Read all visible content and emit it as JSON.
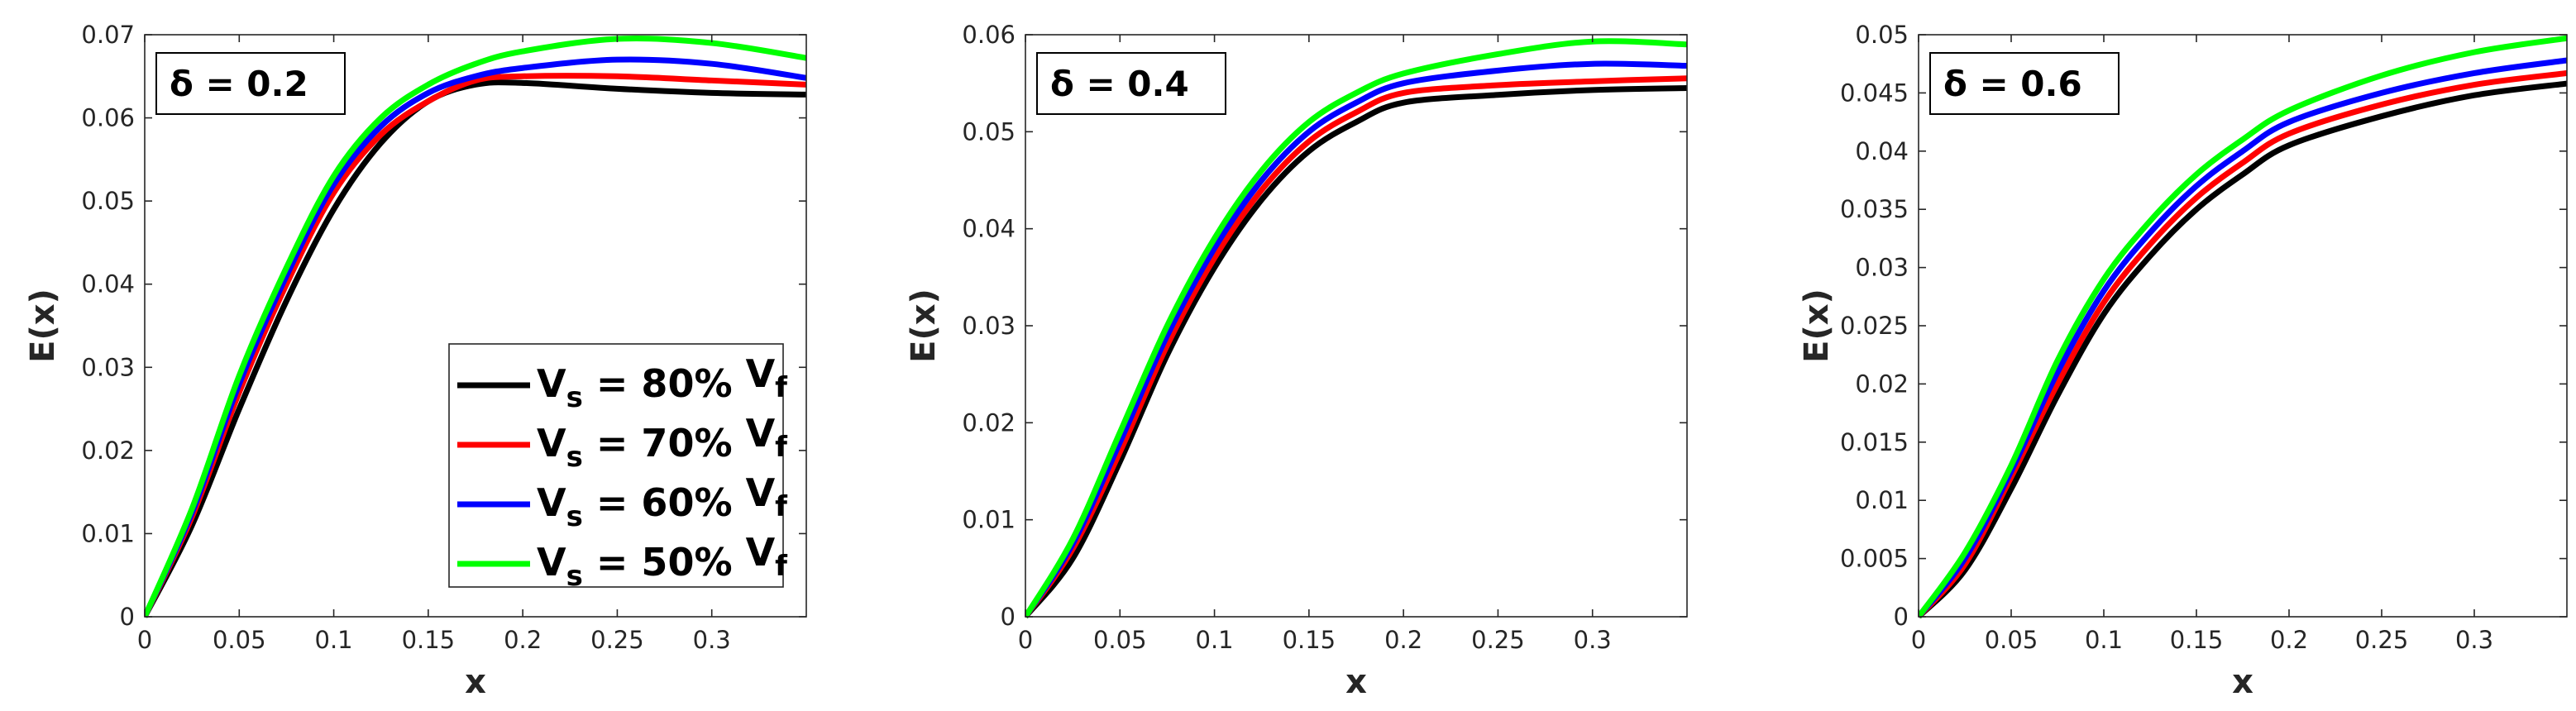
{
  "chart_data": [
    {
      "type": "line",
      "annotation": "δ = 0.2",
      "xlabel": "x",
      "ylabel": "E(x)",
      "xlim": [
        0,
        0.35
      ],
      "ylim": [
        0,
        0.07
      ],
      "xticks": [
        "0",
        "0.05",
        "0.1",
        "0.15",
        "0.2",
        "0.25",
        "0.3"
      ],
      "yticks": [
        "0",
        "0.01",
        "0.02",
        "0.03",
        "0.04",
        "0.05",
        "0.06",
        "0.07"
      ],
      "grid": false,
      "legend_position": "bottom-right",
      "x": [
        0,
        0.025,
        0.05,
        0.075,
        0.1,
        0.125,
        0.15,
        0.175,
        0.2,
        0.25,
        0.3,
        0.35
      ],
      "series": [
        {
          "name": "V_s = 80% V_f",
          "color": "#000000",
          "values": [
            0,
            0.011,
            0.025,
            0.038,
            0.049,
            0.057,
            0.062,
            0.064,
            0.0642,
            0.0635,
            0.063,
            0.0628
          ]
        },
        {
          "name": "V_s = 70% V_f",
          "color": "#ff0000",
          "values": [
            0,
            0.012,
            0.027,
            0.04,
            0.051,
            0.058,
            0.062,
            0.0645,
            0.065,
            0.065,
            0.0645,
            0.064
          ]
        },
        {
          "name": "V_s = 60% V_f",
          "color": "#0000ff",
          "values": [
            0,
            0.0125,
            0.028,
            0.041,
            0.052,
            0.059,
            0.063,
            0.065,
            0.066,
            0.067,
            0.0665,
            0.0648
          ]
        },
        {
          "name": "V_s = 50% V_f",
          "color": "#00ff00",
          "values": [
            0,
            0.013,
            0.029,
            0.042,
            0.053,
            0.06,
            0.064,
            0.0665,
            0.068,
            0.0695,
            0.069,
            0.0672
          ]
        }
      ]
    },
    {
      "type": "line",
      "annotation": "δ = 0.4",
      "xlabel": "x",
      "ylabel": "E(x)",
      "xlim": [
        0,
        0.35
      ],
      "ylim": [
        0,
        0.06
      ],
      "xticks": [
        "0",
        "0.05",
        "0.1",
        "0.15",
        "0.2",
        "0.25",
        "0.3"
      ],
      "yticks": [
        "0",
        "0.01",
        "0.02",
        "0.03",
        "0.04",
        "0.05",
        "0.06"
      ],
      "grid": false,
      "x": [
        0,
        0.025,
        0.05,
        0.075,
        0.1,
        0.125,
        0.15,
        0.175,
        0.2,
        0.25,
        0.3,
        0.35
      ],
      "series": [
        {
          "name": "V_s = 80% V_f",
          "color": "#000000",
          "values": [
            0,
            0.006,
            0.016,
            0.027,
            0.036,
            0.043,
            0.048,
            0.051,
            0.053,
            0.0538,
            0.0543,
            0.0545
          ]
        },
        {
          "name": "V_s = 70% V_f",
          "color": "#ff0000",
          "values": [
            0,
            0.007,
            0.017,
            0.028,
            0.037,
            0.044,
            0.049,
            0.052,
            0.054,
            0.0548,
            0.0552,
            0.0555
          ]
        },
        {
          "name": "V_s = 60% V_f",
          "color": "#0000ff",
          "values": [
            0,
            0.0075,
            0.018,
            0.029,
            0.038,
            0.045,
            0.05,
            0.053,
            0.055,
            0.0563,
            0.057,
            0.0568
          ]
        },
        {
          "name": "V_s = 50% V_f",
          "color": "#00ff00",
          "values": [
            0,
            0.008,
            0.019,
            0.03,
            0.039,
            0.046,
            0.051,
            0.054,
            0.056,
            0.058,
            0.0593,
            0.059
          ]
        }
      ]
    },
    {
      "type": "line",
      "annotation": "δ = 0.6",
      "xlabel": "x",
      "ylabel": "E(x)",
      "xlim": [
        0,
        0.35
      ],
      "ylim": [
        0,
        0.05
      ],
      "xticks": [
        "0",
        "0.05",
        "0.1",
        "0.15",
        "0.2",
        "0.25",
        "0.3"
      ],
      "yticks": [
        "0",
        "0.005",
        "0.01",
        "0.015",
        "0.02",
        "0.025",
        "0.03",
        "0.035",
        "0.04",
        "0.045",
        "0.05"
      ],
      "grid": false,
      "x": [
        0,
        0.025,
        0.05,
        0.075,
        0.1,
        0.125,
        0.15,
        0.175,
        0.2,
        0.25,
        0.3,
        0.35
      ],
      "series": [
        {
          "name": "V_s = 80% V_f",
          "color": "#000000",
          "values": [
            0,
            0.004,
            0.011,
            0.019,
            0.026,
            0.031,
            0.035,
            0.038,
            0.0405,
            0.043,
            0.0448,
            0.0458
          ]
        },
        {
          "name": "V_s = 70% V_f",
          "color": "#ff0000",
          "values": [
            0,
            0.0045,
            0.012,
            0.02,
            0.027,
            0.032,
            0.036,
            0.039,
            0.0415,
            0.044,
            0.0457,
            0.0467
          ]
        },
        {
          "name": "V_s = 60% V_f",
          "color": "#0000ff",
          "values": [
            0,
            0.005,
            0.0125,
            0.021,
            0.028,
            0.033,
            0.037,
            0.04,
            0.0425,
            0.045,
            0.0467,
            0.0478
          ]
        },
        {
          "name": "V_s = 50% V_f",
          "color": "#00ff00",
          "values": [
            0,
            0.0055,
            0.013,
            0.022,
            0.029,
            0.034,
            0.038,
            0.041,
            0.0435,
            0.0465,
            0.0485,
            0.0497
          ]
        }
      ]
    }
  ]
}
